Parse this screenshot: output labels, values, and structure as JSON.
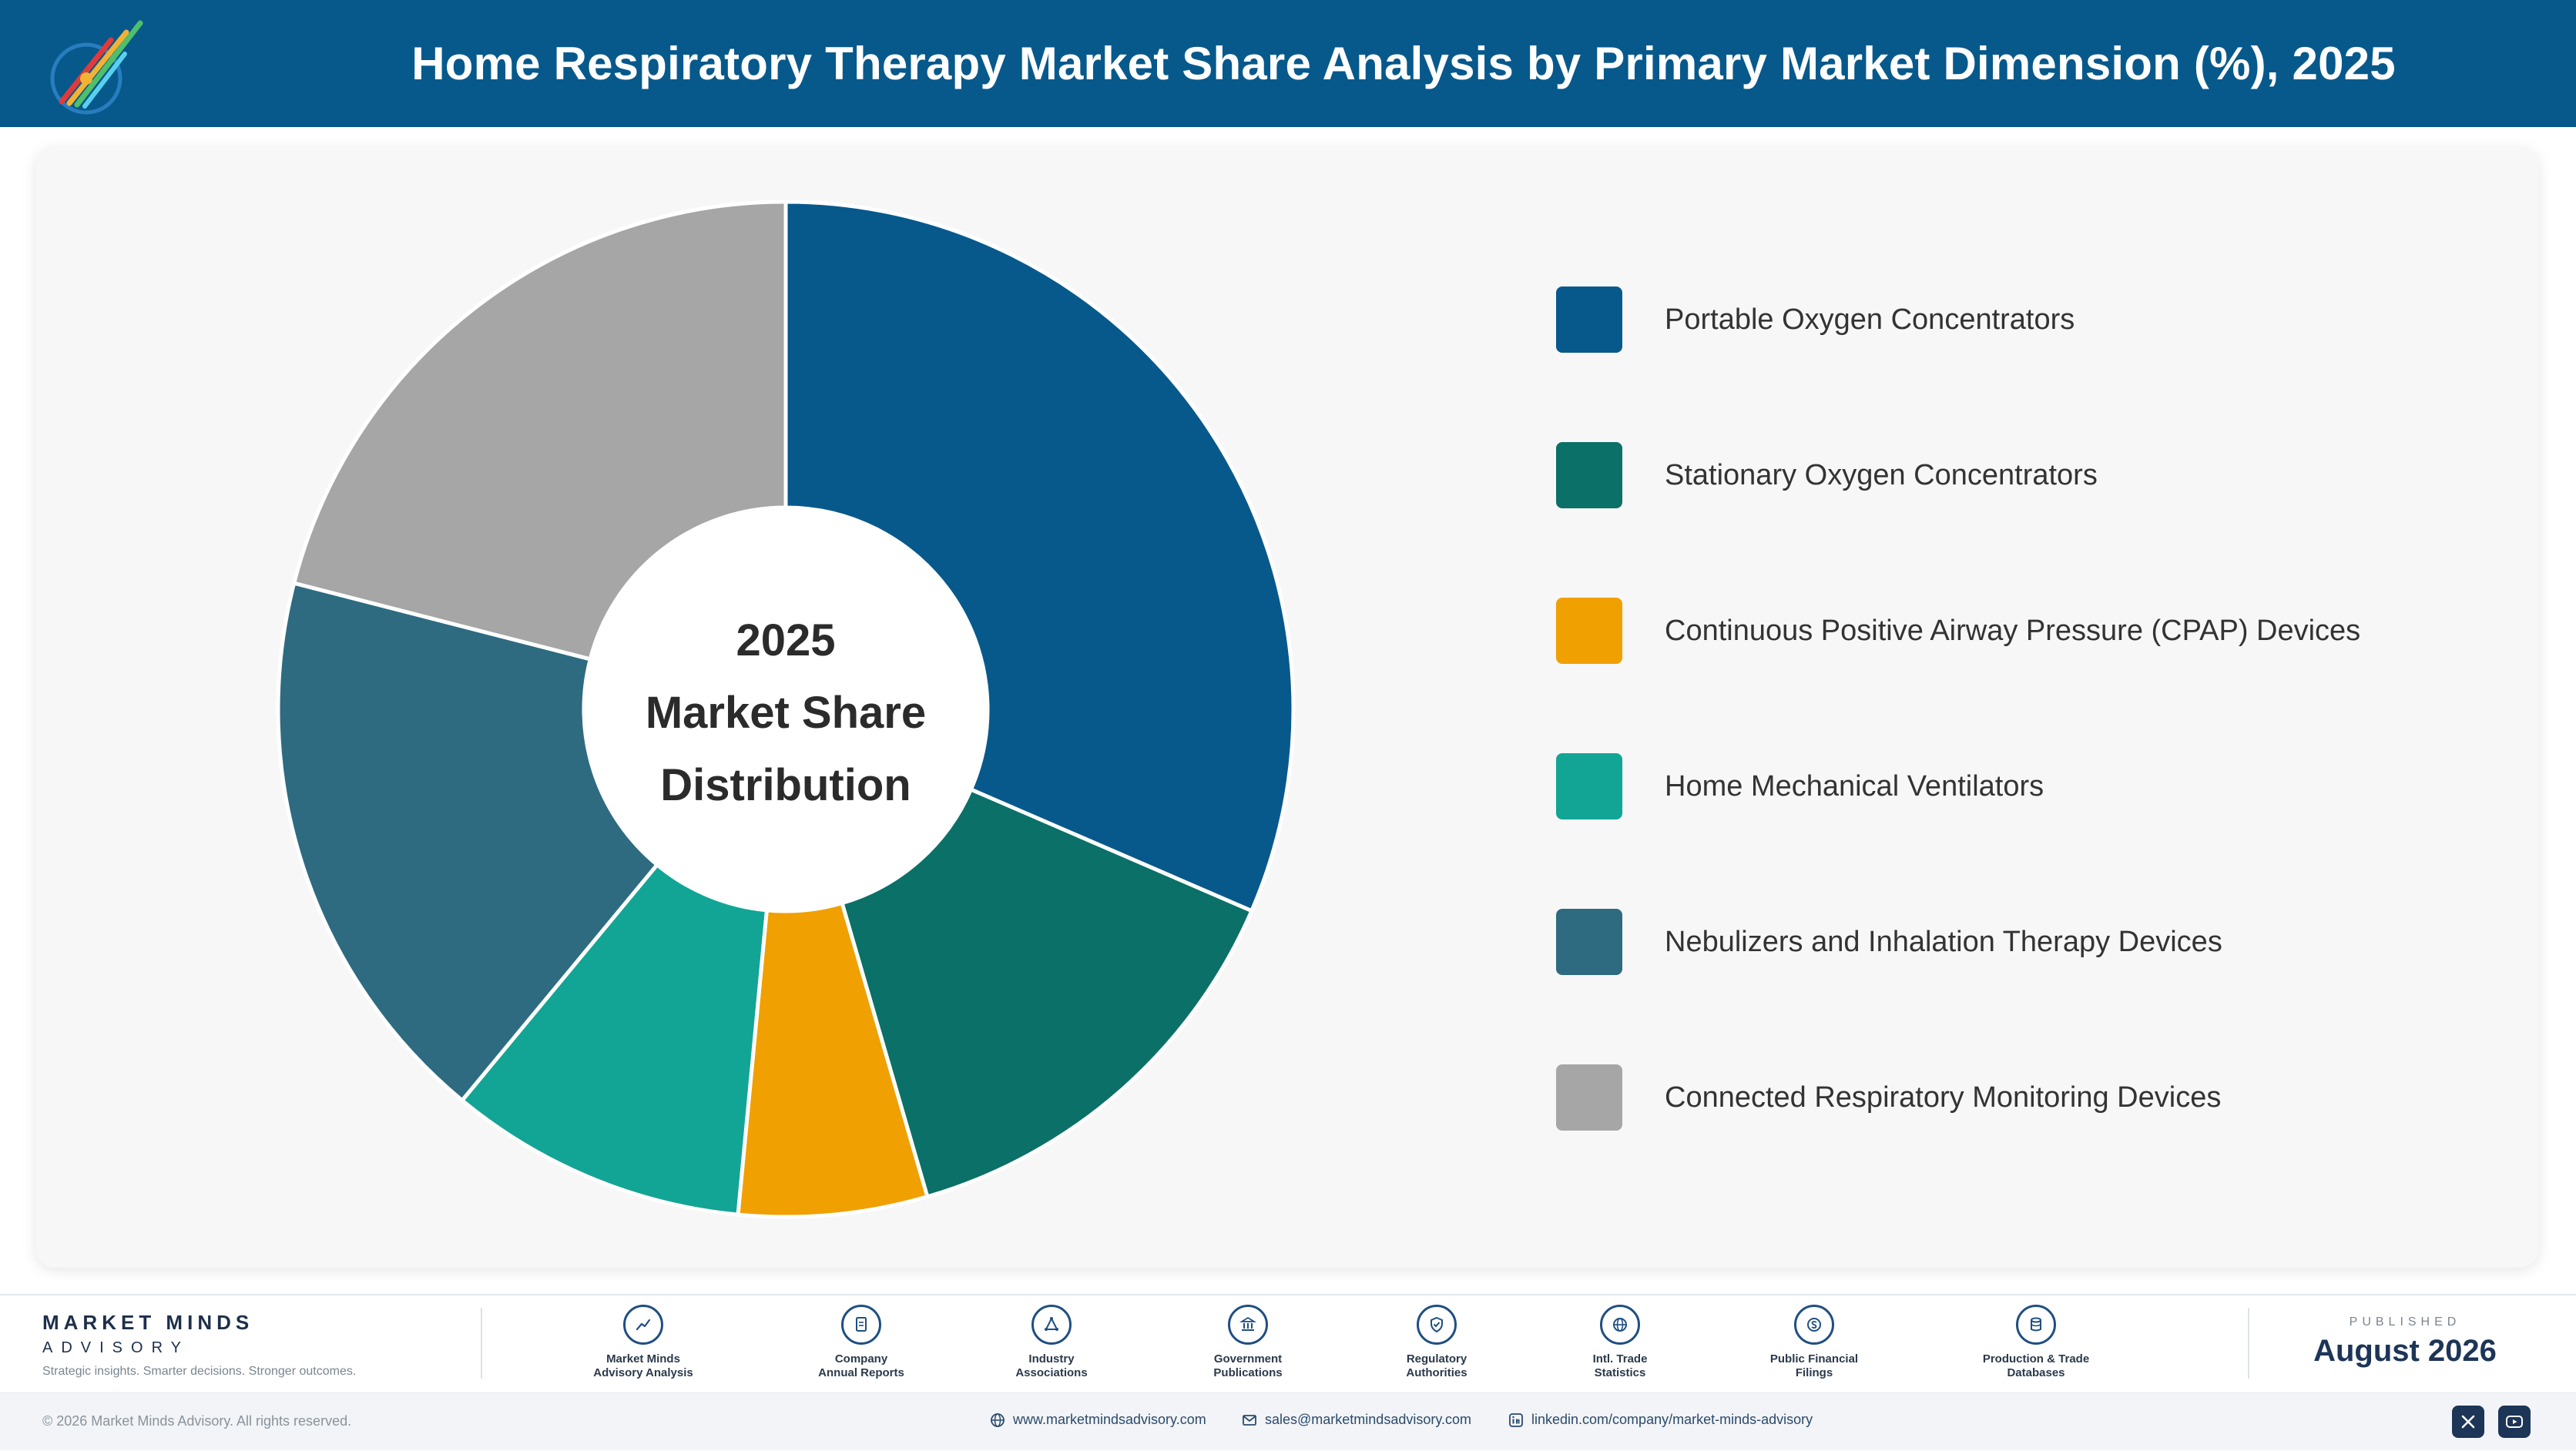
{
  "header": {
    "title": "Home Respiratory Therapy Market Share Analysis by Primary Market Dimension (%), 2025"
  },
  "chart_data": {
    "type": "pie",
    "donut": true,
    "center_label": [
      "2025",
      "Market Share",
      "Distribution"
    ],
    "categories": [
      "Portable Oxygen Concentrators",
      "Stationary Oxygen Concentrators",
      "Continuous Positive Airway Pressure (CPAP) Devices",
      "Home Mechanical Ventilators",
      "Nebulizers and Inhalation Therapy Devices",
      "Connected Respiratory Monitoring Devices"
    ],
    "values": [
      31.5,
      14.0,
      6.0,
      9.5,
      18.0,
      21.0
    ],
    "colors": [
      "#07598c",
      "#0b7068",
      "#f0a000",
      "#12a595",
      "#2e6b80",
      "#a6a6a6"
    ],
    "legend_position": "right"
  },
  "footer": {
    "brand_name": "MARKET MINDS",
    "brand_sub": "ADVISORY",
    "tagline": "Strategic insights. Smarter decisions. Stronger outcomes.",
    "sources": [
      {
        "icon": "trend-chart-icon",
        "line1": "Market Minds",
        "line2": "Advisory Analysis"
      },
      {
        "icon": "document-icon",
        "line1": "Company",
        "line2": "Annual Reports"
      },
      {
        "icon": "network-icon",
        "line1": "Industry",
        "line2": "Associations"
      },
      {
        "icon": "government-building-icon",
        "line1": "Government",
        "line2": "Publications"
      },
      {
        "icon": "shield-check-icon",
        "line1": "Regulatory",
        "line2": "Authorities"
      },
      {
        "icon": "globe-icon",
        "line1": "Intl. Trade",
        "line2": "Statistics"
      },
      {
        "icon": "dollar-coin-icon",
        "line1": "Public Financial",
        "line2": "Filings"
      },
      {
        "icon": "database-icon",
        "line1": "Production & Trade",
        "line2": "Databases"
      }
    ],
    "published_label": "PUBLISHED",
    "published_date": "August 2026",
    "copyright": "© 2026 Market Minds Advisory. All rights reserved.",
    "website": "www.marketmindsadvisory.com",
    "email": "sales@marketmindsadvisory.com",
    "linkedin": "linkedin.com/company/market-minds-advisory"
  }
}
